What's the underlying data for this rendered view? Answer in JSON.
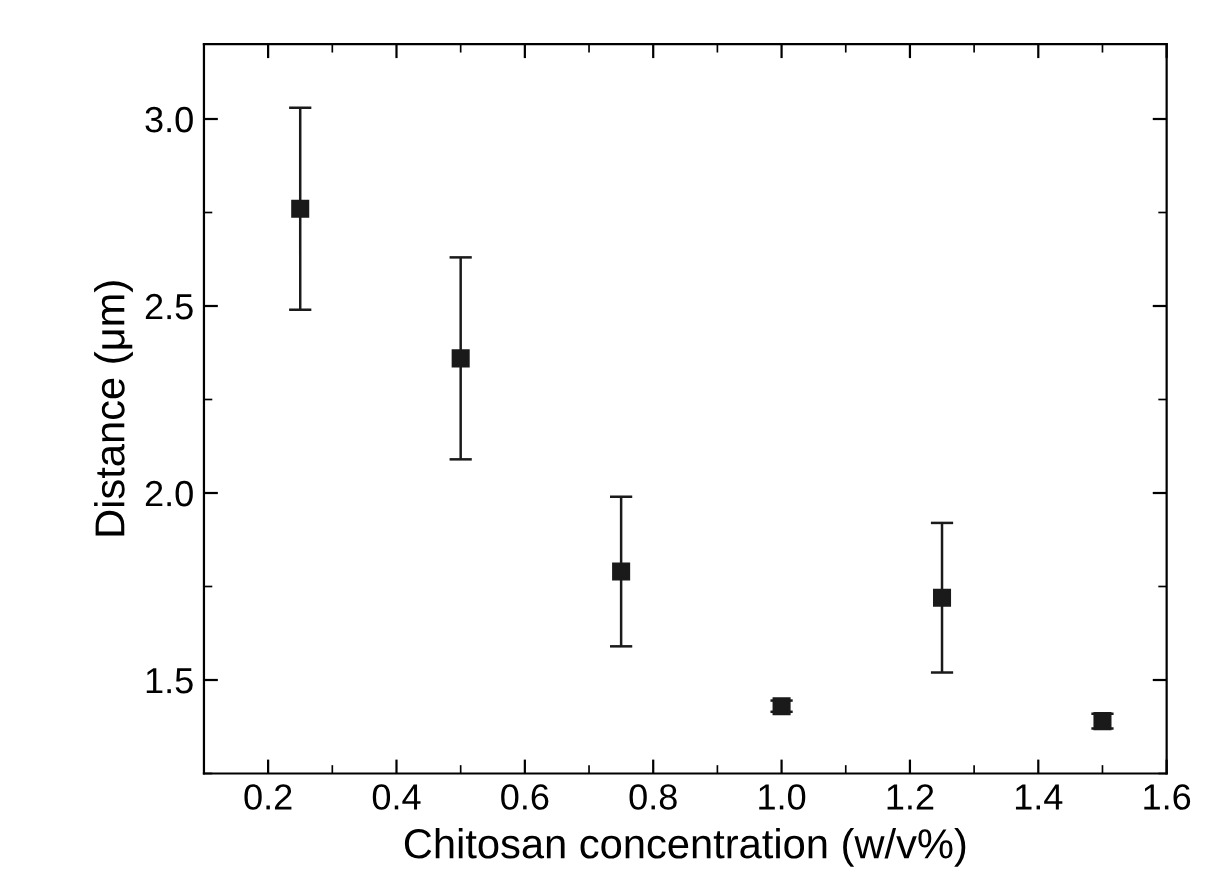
{
  "chart_data": {
    "type": "scatter",
    "xlabel": "Chitosan concentration (w/v%)",
    "ylabel": "Distance (μm)",
    "x": [
      0.25,
      0.5,
      0.75,
      1.0,
      1.25,
      1.5
    ],
    "series": [
      {
        "color": "#1a1a1a",
        "values": [
          2.76,
          2.36,
          1.79,
          1.43,
          1.72,
          1.39
        ],
        "errors": [
          0.27,
          0.27,
          0.2,
          0.015,
          0.2,
          0.02
        ]
      }
    ],
    "xlim": [
      0.1,
      1.6
    ],
    "ylim": [
      1.25,
      3.2
    ],
    "xticks": [
      0.2,
      0.4,
      0.6,
      0.8,
      {
        "value": 1,
        "label": "1.0"
      },
      1.2,
      1.4,
      1.6
    ],
    "yticks": [
      1.5,
      {
        "value": 2,
        "label": "2.0"
      },
      2.5,
      {
        "value": 3,
        "label": "3.0"
      }
    ],
    "marker": "square",
    "grid": false,
    "legend": false
  }
}
